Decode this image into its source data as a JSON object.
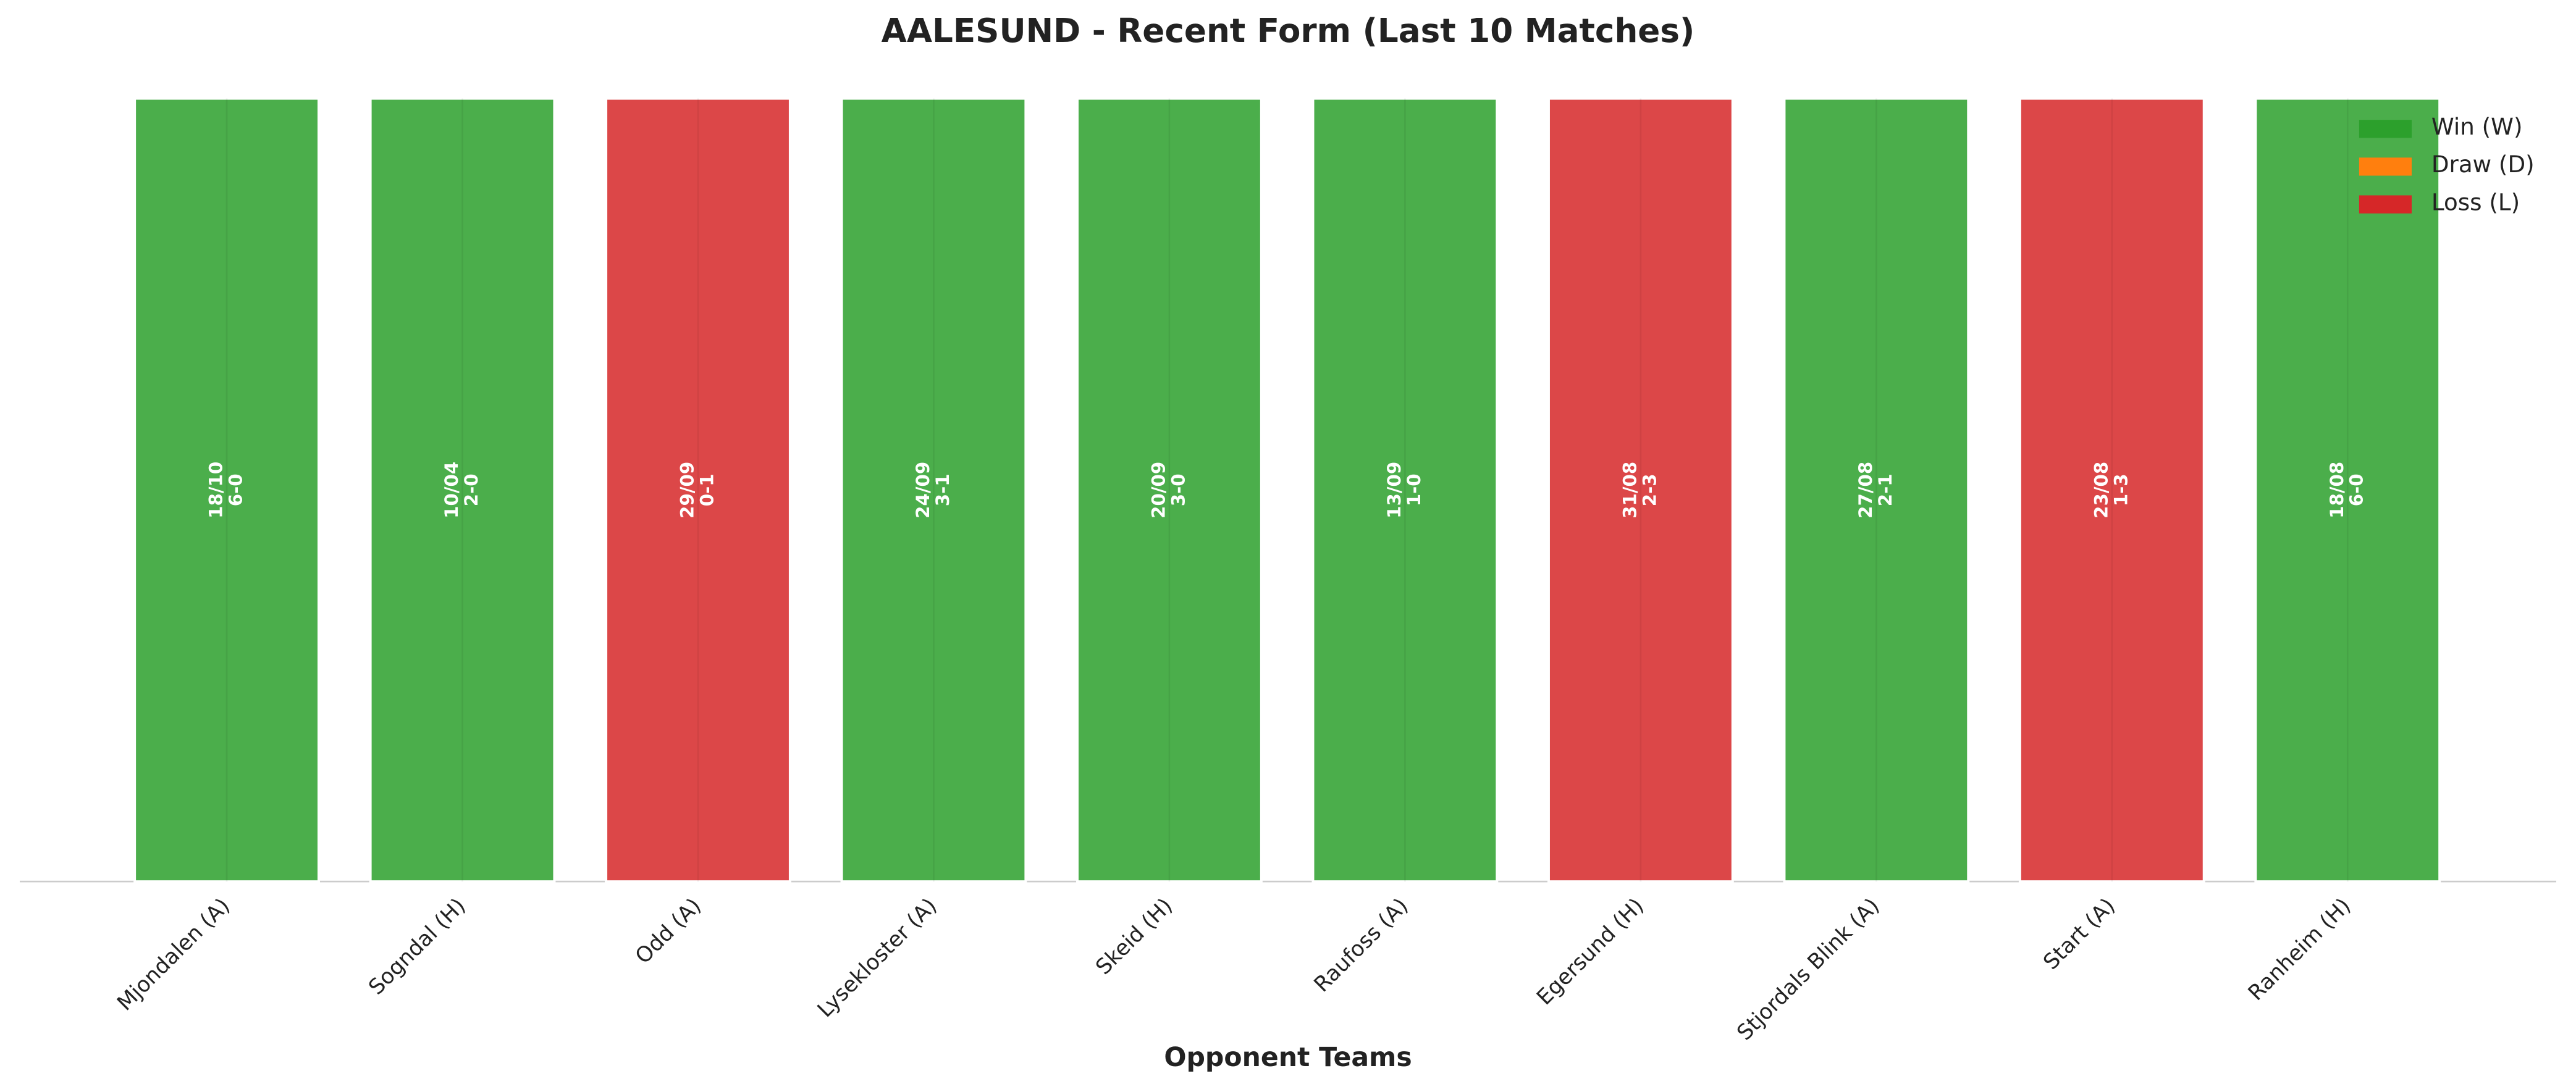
{
  "chart_data": {
    "type": "bar",
    "title": "AALESUND - Recent Form (Last 10 Matches)",
    "x_label": "Opponent Teams",
    "categories": [
      "Mjondalen (A)",
      "Sogndal (H)",
      "Odd (A)",
      "Lysekloster (A)",
      "Skeid (H)",
      "Raufoss (A)",
      "Egersund (H)",
      "Stjordals Blink (A)",
      "Start (A)",
      "Ranheim (H)"
    ],
    "values": [
      1,
      1,
      1,
      1,
      1,
      1,
      1,
      1,
      1,
      1
    ],
    "dates": [
      "18/10",
      "10/04",
      "29/09",
      "24/09",
      "20/09",
      "13/09",
      "31/08",
      "27/08",
      "23/08",
      "18/08"
    ],
    "scores": [
      "6-0",
      "2-0",
      "0-1",
      "3-1",
      "3-0",
      "1-0",
      "2-3",
      "2-1",
      "1-3",
      "6-0"
    ],
    "colors": [
      "#2ca02c",
      "#2ca02c",
      "#d62728",
      "#2ca02c",
      "#2ca02c",
      "#2ca02c",
      "#d62728",
      "#2ca02c",
      "#d62728",
      "#2ca02c"
    ],
    "ylim": [
      0,
      1
    ],
    "legend": [
      {
        "name": "Win (W)",
        "color": "#2ca02c"
      },
      {
        "name": "Draw (D)",
        "color": "#ff7f0e"
      },
      {
        "name": "Loss (L)",
        "color": "#d62728"
      }
    ]
  }
}
